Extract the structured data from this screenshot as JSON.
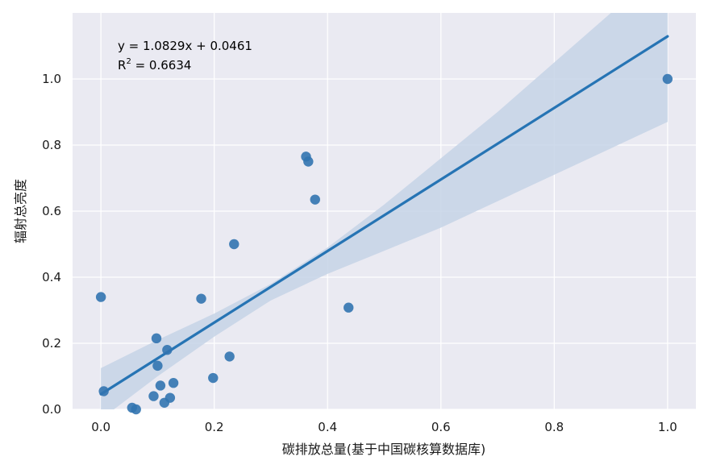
{
  "chart_data": {
    "type": "scatter",
    "xlabel": "碳排放总量(基于中国碳核算数据库)",
    "ylabel": "辐射总亮度",
    "xlim": [
      -0.05,
      1.05
    ],
    "ylim": [
      0.0,
      1.2
    ],
    "x_ticks": [
      0.0,
      0.2,
      0.4,
      0.6,
      0.8,
      1.0
    ],
    "x_tick_labels": [
      "0.0",
      "0.2",
      "0.4",
      "0.6",
      "0.8",
      "1.0"
    ],
    "y_ticks": [
      0.0,
      0.2,
      0.4,
      0.6,
      0.8,
      1.0
    ],
    "y_tick_labels": [
      "0.0",
      "0.2",
      "0.4",
      "0.6",
      "0.8",
      "1.0"
    ],
    "grid": true,
    "colors": {
      "points": "#3274b0",
      "line": "#2674b4",
      "band": "#c5d3e6",
      "background": "#eaeaf2",
      "grid": "#ffffff"
    },
    "points": [
      {
        "x": 0.0,
        "y": 0.34
      },
      {
        "x": 0.005,
        "y": 0.055
      },
      {
        "x": 0.055,
        "y": 0.005
      },
      {
        "x": 0.062,
        "y": 0.0
      },
      {
        "x": 0.093,
        "y": 0.04
      },
      {
        "x": 0.098,
        "y": 0.215
      },
      {
        "x": 0.1,
        "y": 0.132
      },
      {
        "x": 0.105,
        "y": 0.072
      },
      {
        "x": 0.112,
        "y": 0.02
      },
      {
        "x": 0.117,
        "y": 0.18
      },
      {
        "x": 0.122,
        "y": 0.035
      },
      {
        "x": 0.128,
        "y": 0.08
      },
      {
        "x": 0.177,
        "y": 0.335
      },
      {
        "x": 0.198,
        "y": 0.095
      },
      {
        "x": 0.227,
        "y": 0.16
      },
      {
        "x": 0.235,
        "y": 0.5
      },
      {
        "x": 0.362,
        "y": 0.765
      },
      {
        "x": 0.366,
        "y": 0.75
      },
      {
        "x": 0.378,
        "y": 0.635
      },
      {
        "x": 0.437,
        "y": 0.308
      },
      {
        "x": 1.0,
        "y": 1.0
      }
    ],
    "regression": {
      "slope": 1.0829,
      "intercept": 0.0461,
      "x_range": [
        0.0,
        1.0
      ]
    },
    "confidence_band": {
      "x": [
        0.0,
        0.1,
        0.2,
        0.3,
        0.4,
        0.5,
        0.6,
        0.7,
        0.8,
        0.9,
        1.0
      ],
      "lower": [
        -0.03,
        0.1,
        0.22,
        0.33,
        0.41,
        0.48,
        0.55,
        0.63,
        0.71,
        0.79,
        0.87
      ],
      "upper": [
        0.125,
        0.21,
        0.29,
        0.38,
        0.49,
        0.62,
        0.76,
        0.9,
        1.05,
        1.2,
        1.35
      ]
    },
    "annotations": {
      "equation": "y = 1.0829x + 0.0461",
      "r2_prefix": "R",
      "r2_sup": "2",
      "r2_value": " = 0.6634"
    }
  }
}
